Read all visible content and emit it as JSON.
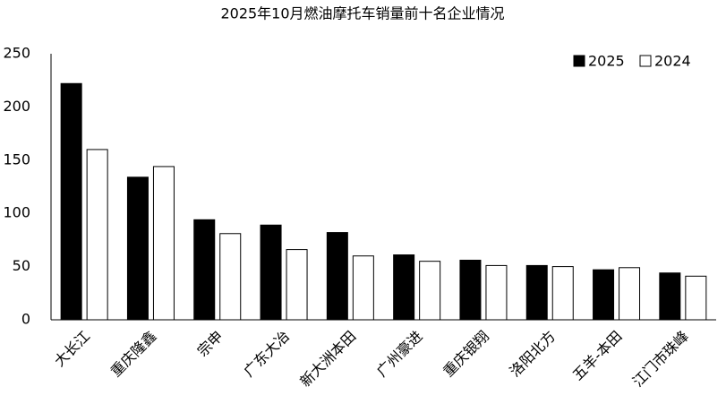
{
  "chart_data": {
    "type": "bar",
    "title": "2025年10月燃油摩托车销量前十名企业情况",
    "categories": [
      "大长江",
      "重庆隆鑫",
      "宗申",
      "广东大冶",
      "新大洲本田",
      "广州豪进",
      "重庆银翔",
      "洛阳北方",
      "五羊-本田",
      "江门市珠峰"
    ],
    "series": [
      {
        "name": "2025",
        "color": "#000000",
        "values": [
          222,
          134,
          94,
          89,
          82,
          61,
          56,
          51,
          47,
          44
        ]
      },
      {
        "name": "2024",
        "color": "#ffffff",
        "values": [
          160,
          144,
          81,
          66,
          60,
          55,
          51,
          50,
          49,
          41
        ]
      }
    ],
    "ylim": [
      0,
      250
    ],
    "yticks": [
      0,
      50,
      100,
      150,
      200,
      250
    ],
    "grid": false,
    "legend": "top-right"
  }
}
